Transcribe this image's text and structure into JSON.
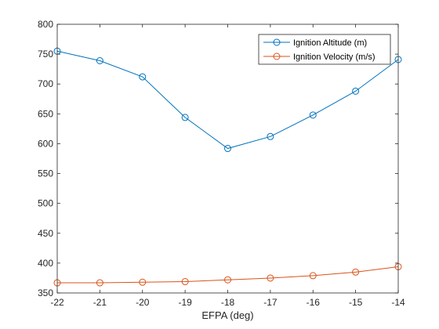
{
  "chart_data": {
    "type": "line",
    "xlabel": "EFPA (deg)",
    "ylabel": "",
    "title": "",
    "x": [
      -22,
      -21,
      -20,
      -19,
      -18,
      -17,
      -16,
      -15,
      -14
    ],
    "xlim": [
      -22,
      -14
    ],
    "ylim": [
      350,
      800
    ],
    "xticks": [
      "-22",
      "-21",
      "-20",
      "-19",
      "-18",
      "-17",
      "-16",
      "-15",
      "-14"
    ],
    "yticks": [
      "350",
      "400",
      "450",
      "500",
      "550",
      "600",
      "650",
      "700",
      "750",
      "800"
    ],
    "xtick_values": [
      -22,
      -21,
      -20,
      -19,
      -18,
      -17,
      -16,
      -15,
      -14
    ],
    "ytick_values": [
      350,
      400,
      450,
      500,
      550,
      600,
      650,
      700,
      750,
      800
    ],
    "grid": false,
    "legend_position": "top-right",
    "series": [
      {
        "name": "Ignition Altitude (m)",
        "color": "#0072BD",
        "marker": "circle",
        "values": [
          755,
          739,
          712,
          644,
          592,
          612,
          648,
          688,
          741
        ]
      },
      {
        "name": "Ignition Velocity (m/s)",
        "color": "#D95319",
        "marker": "circle",
        "values": [
          367,
          367,
          368,
          369,
          372,
          375,
          379,
          385,
          394
        ]
      }
    ]
  }
}
